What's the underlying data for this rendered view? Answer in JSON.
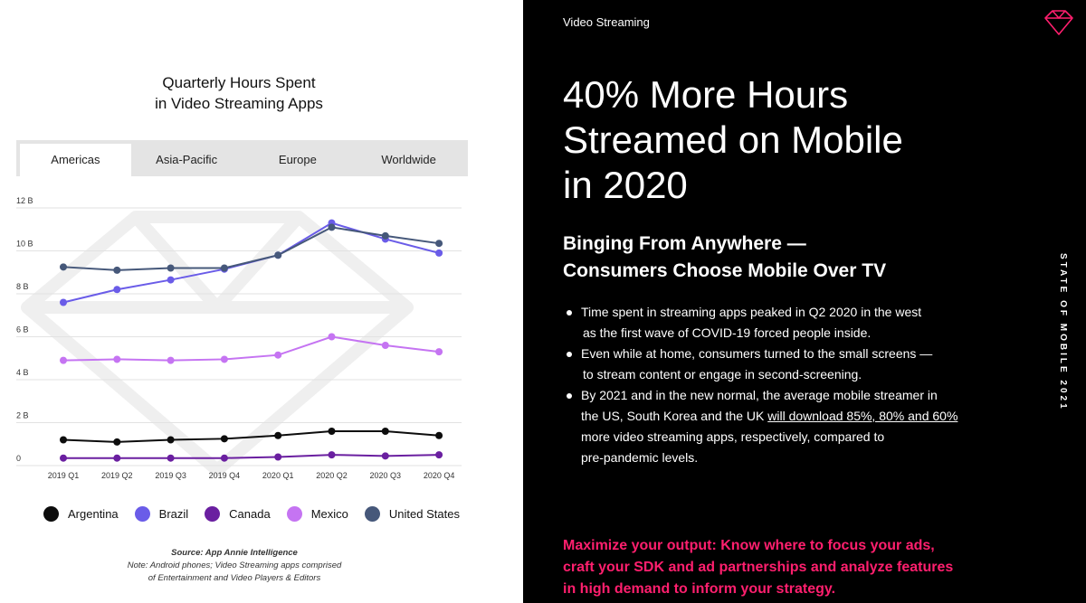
{
  "chart": {
    "title_line1": "Quarterly Hours Spent",
    "title_line2": "in Video Streaming Apps",
    "tabs": [
      {
        "label": "Americas",
        "active": true
      },
      {
        "label": "Asia-Pacific",
        "active": false
      },
      {
        "label": "Europe",
        "active": false
      },
      {
        "label": "Worldwide",
        "active": false
      }
    ],
    "source_main": "Source: App Annie Intelligence",
    "note_line1": "Note: Android phones; Video Streaming apps comprised",
    "note_line2": "of Entertainment and Video Players & Editors"
  },
  "chart_data": {
    "type": "line",
    "categories": [
      "2019 Q1",
      "2019 Q2",
      "2019 Q3",
      "2019 Q4",
      "2020 Q1",
      "2020 Q2",
      "2020 Q3",
      "2020 Q4"
    ],
    "ytick_labels": [
      "0",
      "2 B",
      "4 B",
      "6 B",
      "8 B",
      "10 B",
      "12 B"
    ],
    "ytick_values": [
      0,
      2,
      4,
      6,
      8,
      10,
      12
    ],
    "ylim": [
      0,
      12
    ],
    "unit": "B",
    "grid": true,
    "legend_position": "bottom",
    "series": [
      {
        "name": "Argentina",
        "color": "#0d0d0d",
        "values": [
          1.2,
          1.1,
          1.2,
          1.25,
          1.4,
          1.6,
          1.6,
          1.4
        ]
      },
      {
        "name": "Brazil",
        "color": "#6a5ce8",
        "values": [
          7.6,
          8.2,
          8.65,
          9.15,
          9.8,
          11.3,
          10.55,
          9.9
        ]
      },
      {
        "name": "Canada",
        "color": "#6a1fa0",
        "values": [
          0.35,
          0.35,
          0.35,
          0.35,
          0.4,
          0.5,
          0.45,
          0.5
        ]
      },
      {
        "name": "Mexico",
        "color": "#c574f2",
        "values": [
          4.9,
          4.95,
          4.9,
          4.95,
          5.15,
          6.0,
          5.6,
          5.3
        ]
      },
      {
        "name": "United States",
        "color": "#46587a",
        "values": [
          9.25,
          9.1,
          9.2,
          9.2,
          9.8,
          11.1,
          10.7,
          10.35
        ]
      }
    ]
  },
  "right": {
    "section_label": "Video Streaming",
    "logo_icon": "diamond-logo-icon",
    "headline_line1": "40% More Hours",
    "headline_line2": "Streamed on Mobile",
    "headline_line3": "in 2020",
    "subhead_line1": "Binging From Anywhere —",
    "subhead_line2": "Consumers Choose Mobile Over TV",
    "bullet1_line1": "Time spent in streaming apps peaked in Q2 2020 in the west",
    "bullet1_line2": "as the first wave of COVID-19 forced people inside.",
    "bullet2_line1": "Even while at home, consumers turned to the small screens —",
    "bullet2_line2": "to stream content or engage in second-screening.",
    "bullet3_line1": "By 2021 and in the new normal, the average mobile streamer in",
    "bullet3_line2_pre": "the US, South Korea and the UK ",
    "bullet3_link": "will download 85%, 80% and 60%",
    "bullet3_line3": "more video streaming apps, respectively, compared to",
    "bullet3_line4": "pre-pandemic levels.",
    "vertical_text": "STATE OF MOBILE 2021",
    "cta_line1": "Maximize your output: Know where to focus your ads,",
    "cta_line2": "craft your SDK and ad partnerships and analyze features",
    "cta_line3": "in high demand to inform your strategy.",
    "cta_color": "#ff1f6e"
  }
}
